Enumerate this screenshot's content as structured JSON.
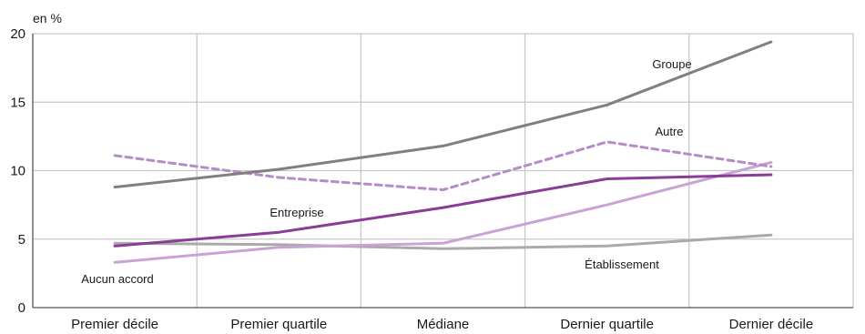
{
  "chart_data": {
    "type": "line",
    "title": "",
    "ylabel": "en %",
    "xlabel": "",
    "categories": [
      "Premier décile",
      "Premier quartile",
      "Médiane",
      "Dernier quartile",
      "Dernier décile"
    ],
    "ylim": [
      0,
      20
    ],
    "yticks": [
      0,
      5,
      10,
      15,
      20
    ],
    "grid": true,
    "series": [
      {
        "name": "Groupe",
        "values": [
          8.8,
          10.1,
          11.8,
          14.8,
          19.4
        ],
        "color": "#808080",
        "dash": false
      },
      {
        "name": "Autre",
        "values": [
          11.1,
          9.5,
          8.6,
          12.1,
          10.3
        ],
        "color": "#b68bc6",
        "dash": true
      },
      {
        "name": "Entreprise",
        "values": [
          4.5,
          5.5,
          7.3,
          9.4,
          9.7
        ],
        "color": "#8a3d96",
        "dash": false
      },
      {
        "name": "Aucun accord",
        "values": [
          3.3,
          4.4,
          4.7,
          7.5,
          10.6
        ],
        "color": "#c9a3d3",
        "dash": false
      },
      {
        "name": "Établissement",
        "values": [
          4.7,
          4.6,
          4.3,
          4.5,
          5.3
        ],
        "color": "#aaaaaa",
        "dash": false
      }
    ]
  }
}
